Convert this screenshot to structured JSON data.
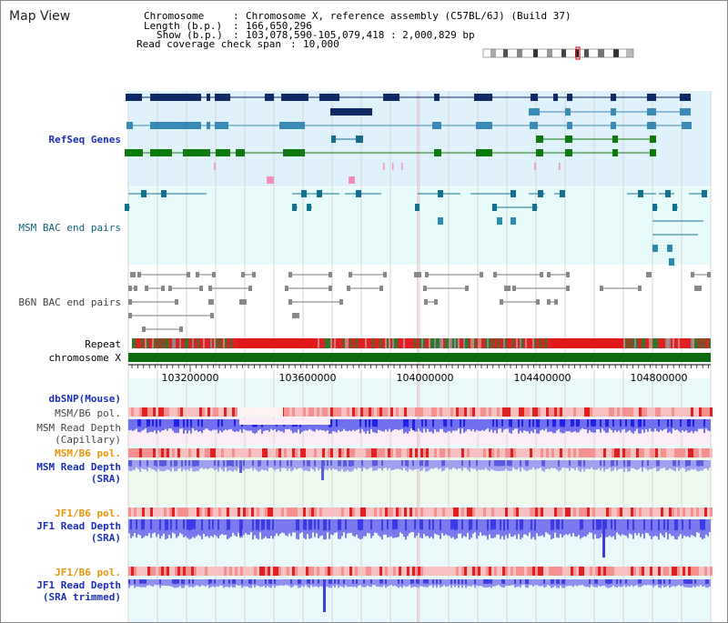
{
  "title": "Map View",
  "header": {
    "chromosome_label": "Chromosome",
    "chromosome_value": "Chromosome X, reference assembly (C57BL/6J) (Build 37)",
    "length_label": "Length (b.p.)",
    "length_value": "166,650,296",
    "show_label": "Show (b.p.)",
    "show_value": "103,078,590-105,079,418 : 2,000,829 bp",
    "span_label": "Read coverage check span",
    "span_value": "10,000"
  },
  "tracks": {
    "refseq": "RefSeq Genes",
    "msm_bac": "MSM BAC end pairs",
    "b6n_bac": "B6N BAC end pairs",
    "repeat": "Repeat",
    "chromosome": "chromosome X",
    "dbsnp": "dbSNP(Mouse)",
    "msm_b6_pol_1": "MSM/B6 pol.",
    "msm_depth_cap_1": "MSM Read Depth",
    "msm_depth_cap_2": "(Capillary)",
    "msm_b6_pol_2": "MSM/B6 pol.",
    "msm_depth_sra_1": "MSM Read Depth",
    "msm_depth_sra_2": "(SRA)",
    "jf1_b6_pol_1": "JF1/B6 pol.",
    "jf1_depth_sra_1": "JF1 Read Depth",
    "jf1_depth_sra_2": "(SRA)",
    "jf1_b6_pol_2": "JF1/B6 pol.",
    "jf1_depth_trim_1": "JF1 Read Depth",
    "jf1_depth_trim_2": "(SRA trimmed)"
  },
  "axis": {
    "ticks": [
      "103200000",
      "103600000",
      "104000000",
      "104400000",
      "104800000"
    ]
  },
  "colors": {
    "refseq_bg": "#dff1fb",
    "bac_bg": "#e8fbfb",
    "pink_bg": "#fcecf6",
    "green_bg": "#edf9ec",
    "chrom": "#0d6b0d",
    "navy": "#0d2a66",
    "steel": "#3a8ab8",
    "green": "#0e7a0e",
    "depth_dark": "#2a2ae8",
    "depth_light": "#8a8aee",
    "pol": "#f08080"
  }
}
